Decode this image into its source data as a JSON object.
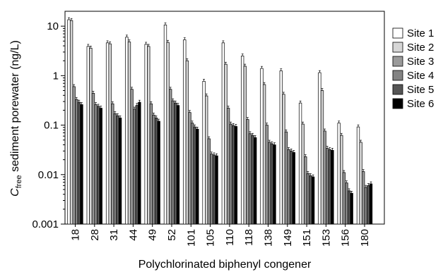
{
  "chart_data": {
    "type": "bar",
    "ylabel_main": "C",
    "ylabel_sub": "free",
    "ylabel_rest": " sediment porewater (ng/L)",
    "xlabel": "Polychlorinated biphenyl congener",
    "yscale": "log",
    "ylim": [
      0.001,
      20
    ],
    "yticks": [
      "0.001",
      "0.01",
      "0.1",
      "1",
      "10"
    ],
    "ytick_values": [
      0.001,
      0.01,
      0.1,
      1,
      10
    ],
    "legend_position": "right",
    "categories": [
      "18",
      "28",
      "31",
      "44",
      "49",
      "52",
      "101",
      "105",
      "110",
      "118",
      "138",
      "149",
      "151",
      "153",
      "156",
      "180"
    ],
    "series": [
      {
        "name": "Site 1",
        "color": "#ffffff",
        "values": [
          13.5,
          3.9,
          4.6,
          6.0,
          4.3,
          10.6,
          5.3,
          0.77,
          4.6,
          2.5,
          1.4,
          1.25,
          0.28,
          1.15,
          0.11,
          0.092
        ]
      },
      {
        "name": "Site 2",
        "color": "#d6d6d6",
        "values": [
          13.0,
          3.6,
          4.4,
          4.8,
          3.9,
          4.7,
          2.0,
          0.39,
          1.7,
          1.55,
          0.66,
          0.42,
          0.105,
          0.5,
          0.062,
          0.045
        ]
      },
      {
        "name": "Site 3",
        "color": "#9a9a9a",
        "values": [
          0.6,
          0.44,
          0.27,
          0.53,
          0.27,
          0.53,
          0.18,
          0.053,
          0.22,
          0.13,
          0.1,
          0.073,
          0.023,
          0.076,
          0.011,
          0.0115
        ]
      },
      {
        "name": "Site 4",
        "color": "#838383",
        "values": [
          0.33,
          0.26,
          0.17,
          0.21,
          0.16,
          0.31,
          0.11,
          0.026,
          0.105,
          0.067,
          0.045,
          0.032,
          0.0105,
          0.034,
          0.0068,
          0.0055
        ]
      },
      {
        "name": "Site 5",
        "color": "#555555",
        "values": [
          0.29,
          0.24,
          0.155,
          0.25,
          0.14,
          0.28,
          0.092,
          0.025,
          0.098,
          0.062,
          0.042,
          0.03,
          0.0095,
          0.032,
          0.0047,
          0.006
        ]
      },
      {
        "name": "Site 6",
        "color": "#000000",
        "values": [
          0.26,
          0.22,
          0.14,
          0.29,
          0.12,
          0.25,
          0.083,
          0.024,
          0.094,
          0.056,
          0.04,
          0.028,
          0.009,
          0.031,
          0.0042,
          0.0065
        ]
      }
    ]
  }
}
